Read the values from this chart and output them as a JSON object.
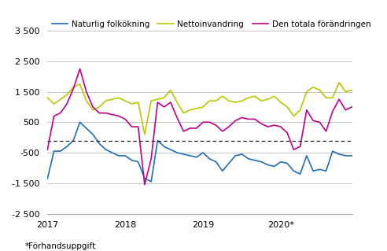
{
  "title": "",
  "legend_labels": [
    "Naturlig folkökning",
    "Nettoinvandring",
    "Den totala förändringen"
  ],
  "legend_colors": [
    "#1f6eb5",
    "#b8c800",
    "#c0008c"
  ],
  "xlabel_note": "*Förhandsuppgift",
  "yticks": [
    -2500,
    -1500,
    -500,
    500,
    1500,
    2500,
    3500
  ],
  "ylim": [
    -2500,
    3500
  ],
  "hline_y": -100,
  "xtick_labels": [
    "2017",
    "2018",
    "2019",
    "2020*"
  ],
  "naturlig": [
    -1350,
    -450,
    -450,
    -300,
    -100,
    500,
    300,
    100,
    -200,
    -400,
    -500,
    -600,
    -600,
    -750,
    -800,
    -1350,
    -1450,
    -100,
    -300,
    -400,
    -500,
    -550,
    -600,
    -650,
    -500,
    -700,
    -800,
    -1100,
    -850,
    -600,
    -550,
    -700,
    -750,
    -800,
    -900,
    -950,
    -800,
    -850,
    -1100,
    -1200,
    -600,
    -1100,
    -1050,
    -1100,
    -450,
    -550,
    -600,
    -600
  ],
  "nettoinvandring": [
    1300,
    1100,
    1250,
    1400,
    1650,
    1750,
    1200,
    900,
    1000,
    1200,
    1250,
    1300,
    1200,
    1100,
    1150,
    100,
    1200,
    1250,
    1300,
    1550,
    1150,
    800,
    900,
    950,
    1000,
    1200,
    1200,
    1350,
    1200,
    1150,
    1200,
    1300,
    1350,
    1200,
    1250,
    1350,
    1150,
    1000,
    700,
    900,
    1500,
    1650,
    1550,
    1300,
    1300,
    1800,
    1500,
    1550
  ],
  "totala": [
    -400,
    700,
    800,
    1100,
    1600,
    2250,
    1500,
    1000,
    800,
    800,
    750,
    700,
    600,
    350,
    350,
    -1550,
    -700,
    1150,
    1000,
    1150,
    650,
    200,
    300,
    300,
    500,
    500,
    400,
    200,
    350,
    550,
    650,
    600,
    600,
    450,
    350,
    400,
    350,
    150,
    -400,
    -300,
    900,
    550,
    500,
    200,
    850,
    1250,
    900,
    1000
  ],
  "background_color": "#ffffff",
  "grid_color": "#aaaaaa",
  "hline_color": "#000000"
}
